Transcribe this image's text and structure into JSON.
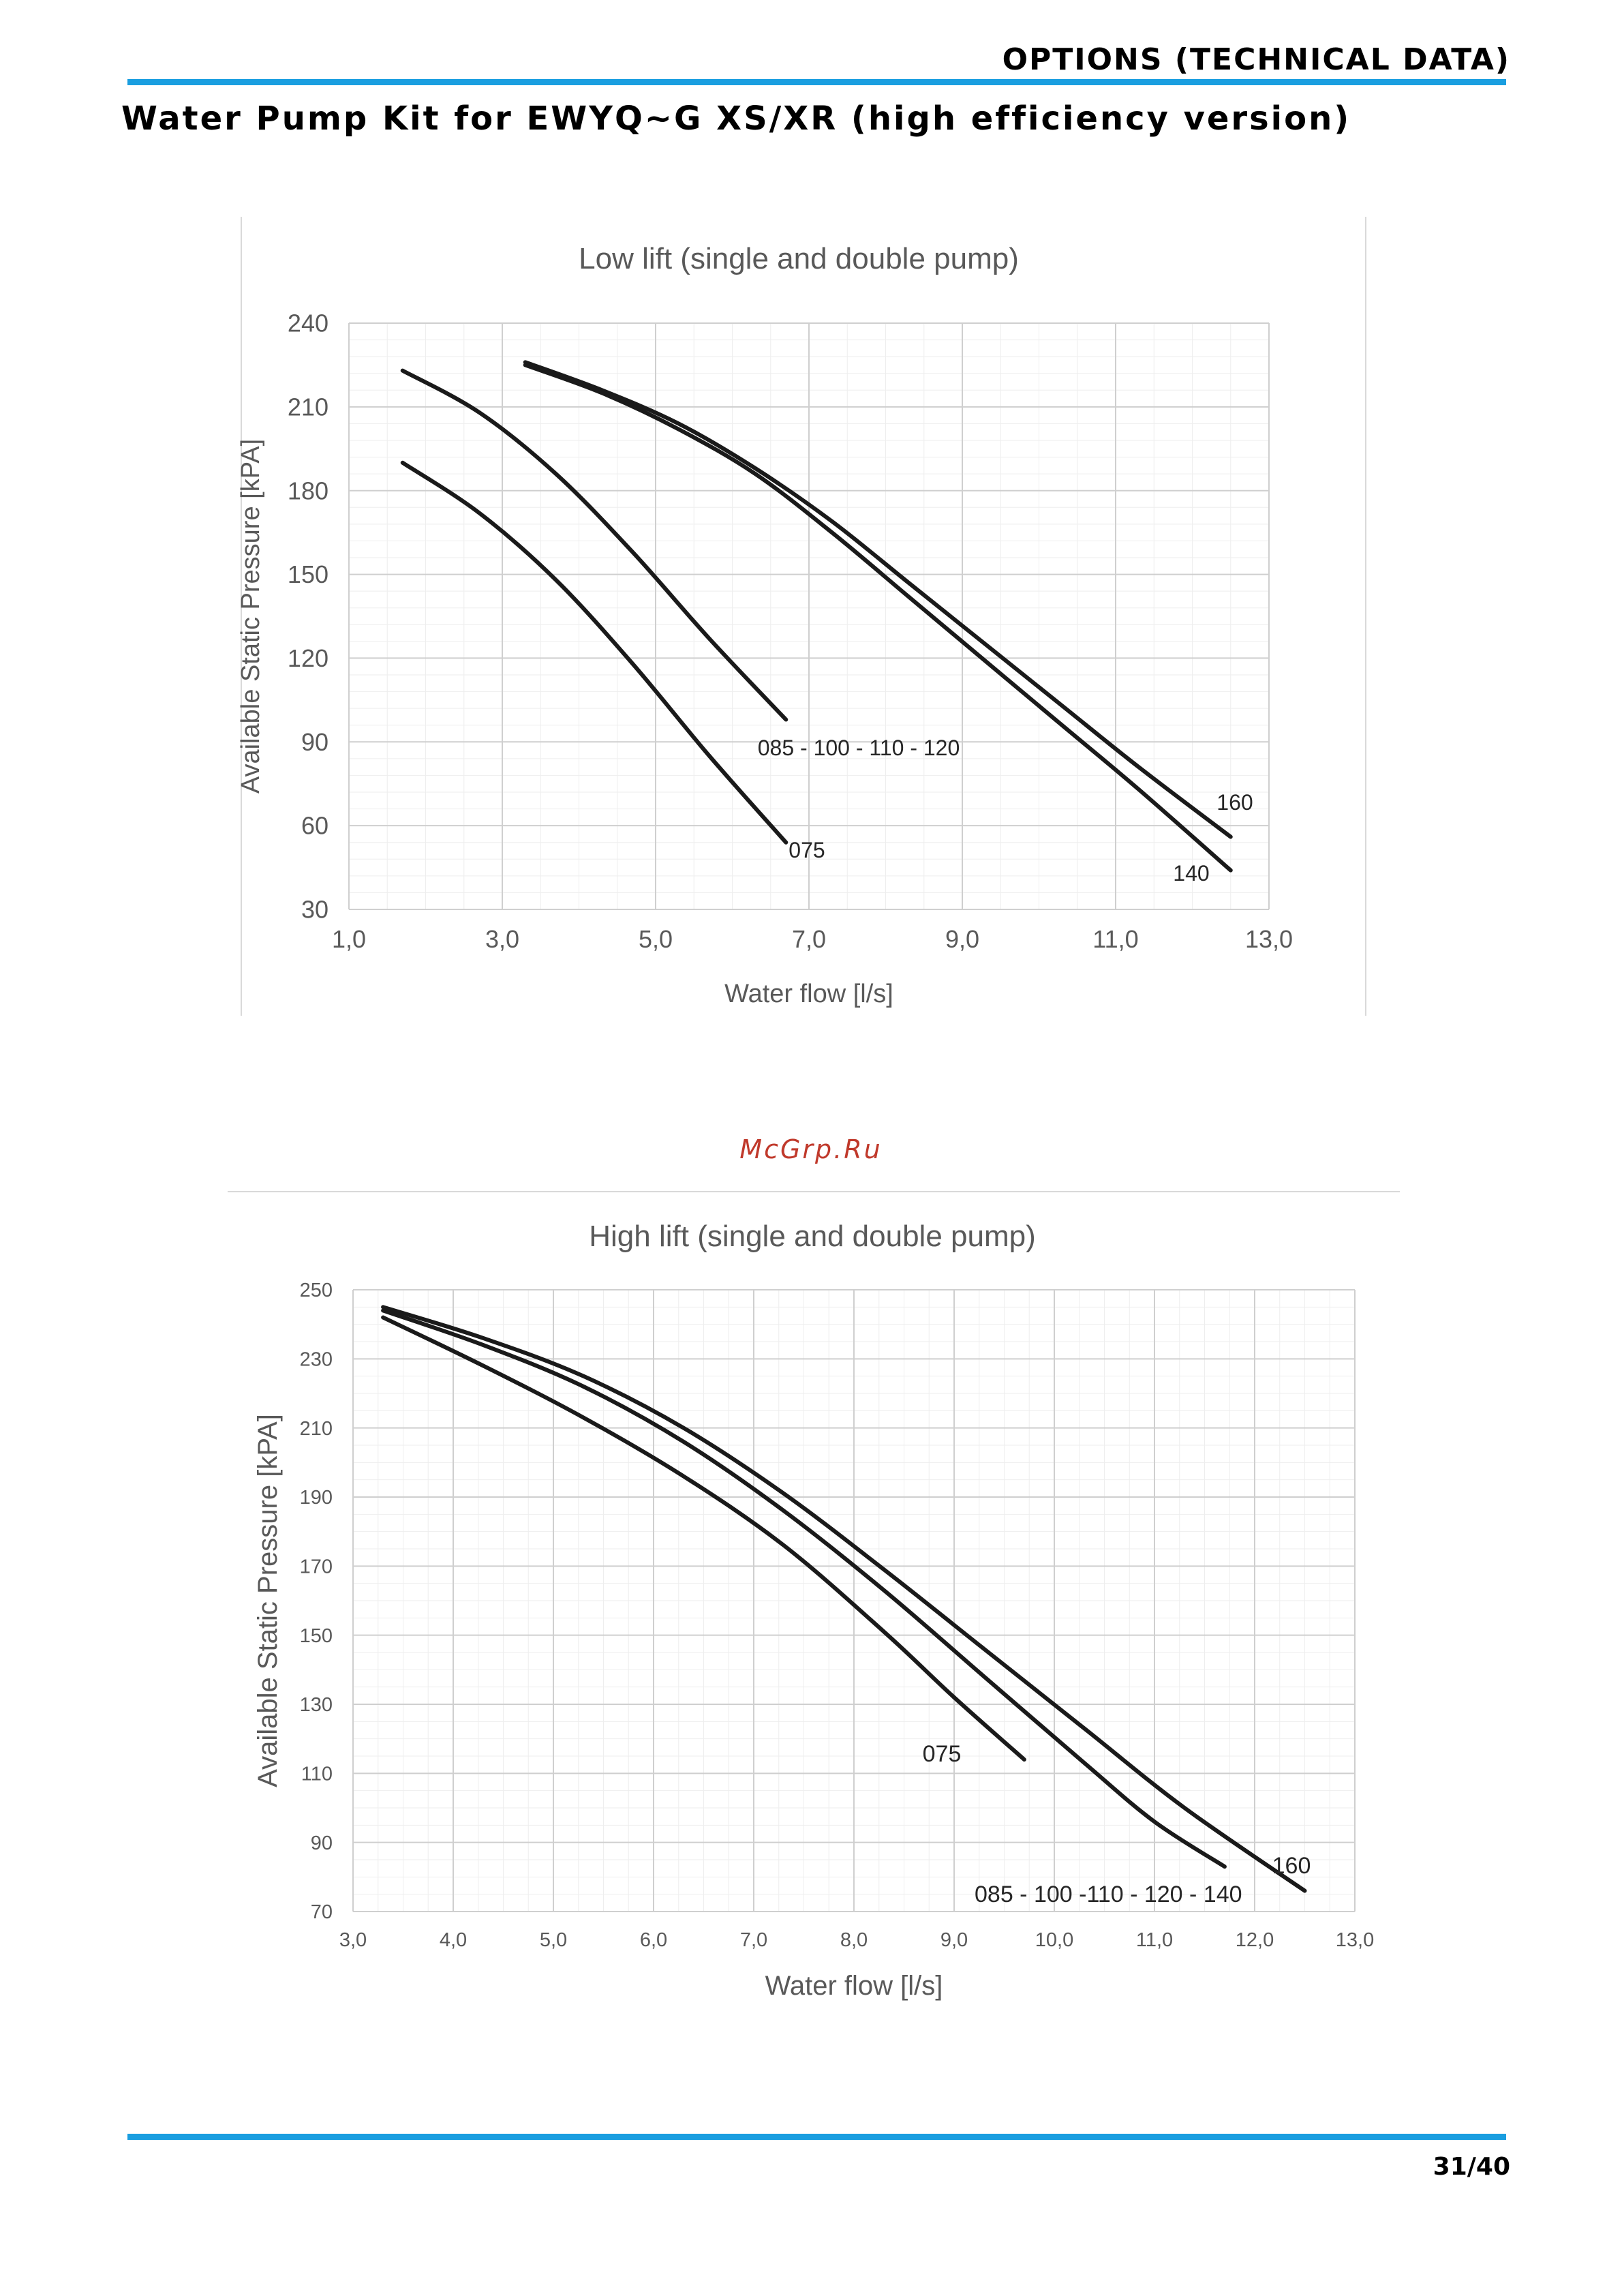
{
  "header": {
    "section_label": "OPTIONS (TECHNICAL DATA)",
    "page_title": "Water Pump Kit for EWYQ~G XS/XR (high efficiency version)",
    "accent_color": "#1a9ee0"
  },
  "watermark": "McGrp.Ru",
  "footer": {
    "page_number": "31/40"
  },
  "chart_data": [
    {
      "type": "line",
      "title": "Low lift (single and double pump)",
      "xlabel": "Water flow [l/s]",
      "ylabel": "Available Static Pressure [kPA]",
      "xlim": [
        1.0,
        13.0
      ],
      "ylim": [
        30,
        240
      ],
      "xticks": [
        "1,0",
        "3,0",
        "5,0",
        "7,0",
        "9,0",
        "11,0",
        "13,0"
      ],
      "yticks": [
        "30",
        "60",
        "90",
        "120",
        "150",
        "180",
        "210",
        "240"
      ],
      "grid": true,
      "series": [
        {
          "name": "075",
          "x": [
            1.7,
            2.7,
            3.7,
            4.7,
            5.7,
            6.7
          ],
          "y": [
            190,
            172,
            148,
            118,
            85,
            54
          ]
        },
        {
          "name": "085 - 100 - 110 - 120",
          "x": [
            1.7,
            2.7,
            3.7,
            4.7,
            5.7,
            6.7
          ],
          "y": [
            223,
            208,
            186,
            158,
            127,
            98
          ]
        },
        {
          "name": "140",
          "x": [
            3.3,
            4.3,
            5.3,
            6.3,
            7.3,
            8.3,
            9.3,
            10.3,
            11.3,
            12.5
          ],
          "y": [
            225,
            215,
            202,
            186,
            165,
            142,
            119,
            96,
            73,
            44
          ]
        },
        {
          "name": "160",
          "x": [
            3.3,
            4.3,
            5.3,
            6.3,
            7.3,
            8.3,
            9.3,
            10.3,
            11.3,
            12.5
          ],
          "y": [
            226,
            216,
            204,
            188,
            169,
            147,
            125,
            103,
            81,
            56
          ]
        }
      ]
    },
    {
      "type": "line",
      "title": "High lift (single and double pump)",
      "xlabel": "Water flow [l/s]",
      "ylabel": "Available Static Pressure [kPA]",
      "xlim": [
        3.0,
        13.0
      ],
      "ylim": [
        70,
        250
      ],
      "xticks": [
        "3,0",
        "4,0",
        "5,0",
        "6,0",
        "7,0",
        "8,0",
        "9,0",
        "10,0",
        "11,0",
        "12,0",
        "13,0"
      ],
      "yticks": [
        "70",
        "90",
        "110",
        "130",
        "150",
        "170",
        "190",
        "210",
        "230",
        "250"
      ],
      "grid": true,
      "series": [
        {
          "name": "075",
          "x": [
            3.3,
            4.3,
            5.3,
            6.3,
            7.3,
            8.3,
            9.0,
            9.7
          ],
          "y": [
            242,
            228,
            213,
            196,
            176,
            151,
            132,
            114
          ]
        },
        {
          "name": "085 - 100 -110 - 120 - 140",
          "x": [
            3.3,
            4.3,
            5.3,
            6.3,
            7.3,
            8.3,
            9.3,
            10.3,
            11.0,
            11.7
          ],
          "y": [
            244,
            234,
            222,
            206,
            186,
            163,
            138,
            113,
            96,
            83
          ]
        },
        {
          "name": "160",
          "x": [
            3.3,
            4.3,
            5.3,
            6.3,
            7.3,
            8.3,
            9.3,
            10.3,
            11.3,
            12.5
          ],
          "y": [
            245,
            236,
            225,
            210,
            191,
            169,
            146,
            123,
            100,
            76
          ]
        }
      ]
    }
  ]
}
